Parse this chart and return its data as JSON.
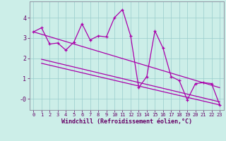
{
  "xlabel": "Windchill (Refroidissement éolien,°C)",
  "bg_color": "#cceee8",
  "line_color": "#aa00aa",
  "grid_color": "#99cccc",
  "x": [
    0,
    1,
    2,
    3,
    4,
    5,
    6,
    7,
    8,
    9,
    10,
    11,
    12,
    13,
    14,
    15,
    16,
    17,
    18,
    19,
    20,
    21,
    22,
    23
  ],
  "y_main": [
    3.3,
    3.5,
    2.7,
    2.75,
    2.4,
    2.8,
    3.7,
    2.9,
    3.1,
    3.05,
    4.0,
    4.4,
    3.1,
    0.55,
    1.1,
    3.35,
    2.5,
    1.1,
    0.9,
    -0.05,
    0.75,
    0.8,
    0.75,
    -0.3
  ],
  "trend1_x0": 0,
  "trend1_y0": 3.3,
  "trend1_x1": 23,
  "trend1_y1": 0.55,
  "trend2_x0": 1,
  "trend2_y0": 1.95,
  "trend2_x1": 23,
  "trend2_y1": -0.15,
  "trend3_x0": 1,
  "trend3_y0": 1.75,
  "trend3_y1": -0.3,
  "ylim": [
    -0.55,
    4.8
  ],
  "xlim": [
    -0.5,
    23.5
  ],
  "yticks": [
    0,
    1,
    2,
    3,
    4
  ],
  "ytick_labels": [
    "-0",
    "1",
    "2",
    "3",
    "4"
  ],
  "xticks": [
    0,
    1,
    2,
    3,
    4,
    5,
    6,
    7,
    8,
    9,
    10,
    11,
    12,
    13,
    14,
    15,
    16,
    17,
    18,
    19,
    20,
    21,
    22,
    23
  ],
  "figsize": [
    3.2,
    2.0
  ],
  "dpi": 100
}
